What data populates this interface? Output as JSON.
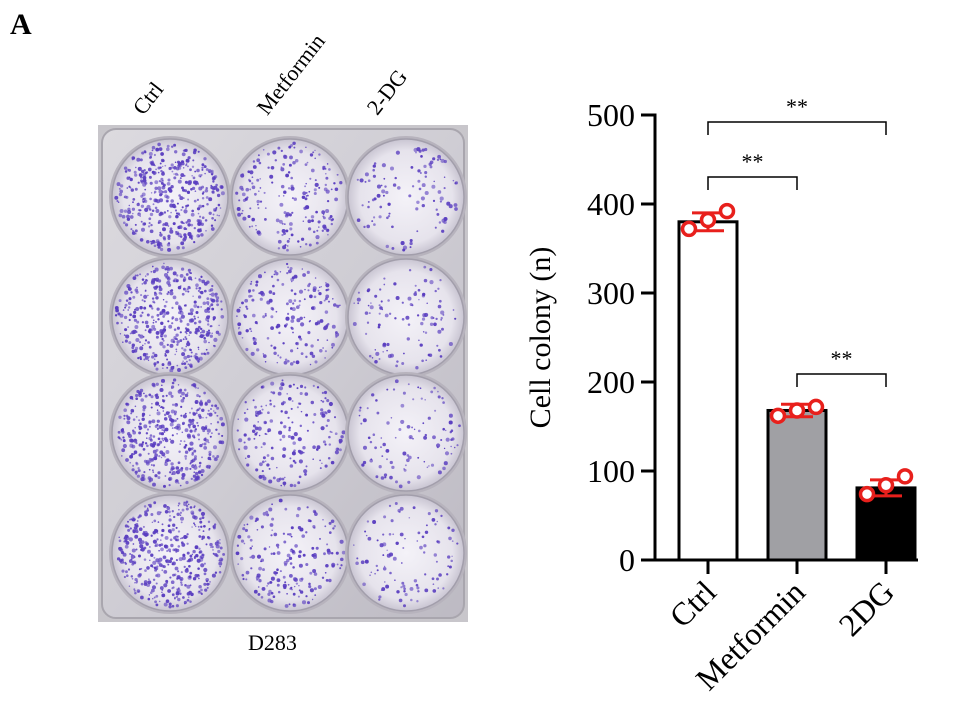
{
  "panel_label": "A",
  "plate": {
    "column_labels": [
      "Ctrl",
      "Metformin",
      "2-DG"
    ],
    "caption": "D283",
    "dot_color": "#5a3ec0",
    "well_density": [
      1.0,
      0.45,
      0.25
    ]
  },
  "chart_data": {
    "type": "bar",
    "categories": [
      "Ctrl",
      "Metformin",
      "2DG"
    ],
    "values": [
      380,
      168,
      81
    ],
    "error": [
      10,
      7,
      9
    ],
    "points": [
      [
        372,
        382,
        392
      ],
      [
        162,
        168,
        172
      ],
      [
        74,
        84,
        94
      ]
    ],
    "bar_colors": [
      "#ffffff",
      "#a0a0a4",
      "#000000"
    ],
    "point_color": "#e8201c",
    "ylabel": "Cell colony (n)",
    "ylim": [
      0,
      500
    ],
    "yticks": [
      0,
      100,
      200,
      300,
      400,
      500
    ],
    "significance": [
      {
        "from": 0,
        "to": 2,
        "label": "**"
      },
      {
        "from": 0,
        "to": 1,
        "label": "**"
      },
      {
        "from": 1,
        "to": 2,
        "label": "**"
      }
    ]
  }
}
